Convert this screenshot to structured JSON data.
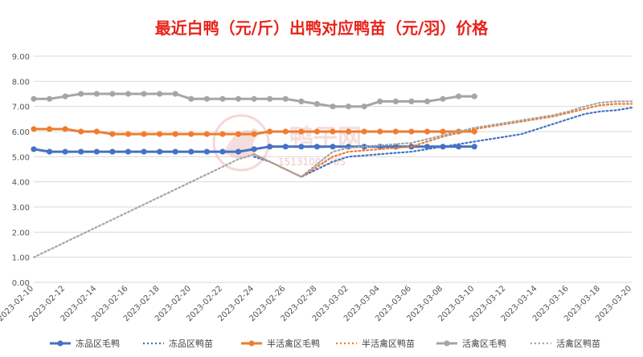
{
  "chart_data": {
    "type": "line",
    "title": "最近白鸭（元/斤）出鸭对应鸭苗（元/羽）价格",
    "xlabel": "",
    "ylabel": "",
    "ylim": [
      0,
      9
    ],
    "yticks": [
      "0.00",
      "1.00",
      "2.00",
      "3.00",
      "4.00",
      "5.00",
      "6.00",
      "7.00",
      "8.00",
      "9.00"
    ],
    "x": [
      "2023-02-10",
      "2023-02-11",
      "2023-02-12",
      "2023-02-13",
      "2023-02-14",
      "2023-02-15",
      "2023-02-16",
      "2023-02-17",
      "2023-02-18",
      "2023-02-19",
      "2023-02-20",
      "2023-02-21",
      "2023-02-22",
      "2023-02-23",
      "2023-02-24",
      "2023-02-25",
      "2023-02-26",
      "2023-02-27",
      "2023-02-28",
      "2023-03-01",
      "2023-03-02",
      "2023-03-03",
      "2023-03-04",
      "2023-03-05",
      "2023-03-06",
      "2023-03-07",
      "2023-03-08",
      "2023-03-09",
      "2023-03-10",
      "2023-03-11",
      "2023-03-12",
      "2023-03-13",
      "2023-03-14",
      "2023-03-15",
      "2023-03-16",
      "2023-03-17",
      "2023-03-18",
      "2023-03-19",
      "2023-03-20"
    ],
    "xticks": [
      "2023-02-10",
      "2023-02-12",
      "2023-02-14",
      "2023-02-16",
      "2023-02-18",
      "2023-02-20",
      "2023-02-22",
      "2023-02-24",
      "2023-02-26",
      "2023-02-28",
      "2023-03-02",
      "2023-03-04",
      "2023-03-06",
      "2023-03-08",
      "2023-03-10",
      "2023-03-12",
      "2023-03-14",
      "2023-03-16",
      "2023-03-18",
      "2023-03-20"
    ],
    "grid": true,
    "legend_position": "bottom",
    "series": [
      {
        "name": "冻品区毛鸭",
        "color": "#4472c4",
        "style": "solid-marker",
        "values": [
          5.3,
          5.2,
          5.2,
          5.2,
          5.2,
          5.2,
          5.2,
          5.2,
          5.2,
          5.2,
          5.2,
          5.2,
          5.2,
          5.2,
          5.3,
          5.4,
          5.4,
          5.4,
          5.4,
          5.4,
          5.4,
          5.4,
          5.4,
          5.4,
          5.4,
          5.4,
          5.4,
          5.4,
          5.4,
          null,
          null,
          null,
          null,
          null,
          null,
          null,
          null,
          null,
          null
        ]
      },
      {
        "name": "冻品区鸭苗",
        "color": "#4472c4",
        "style": "dotted",
        "values": [
          null,
          null,
          null,
          null,
          null,
          null,
          null,
          null,
          null,
          null,
          null,
          null,
          null,
          null,
          5.0,
          4.8,
          4.5,
          4.2,
          4.5,
          4.8,
          5.0,
          5.05,
          5.1,
          5.15,
          5.2,
          5.3,
          5.4,
          5.5,
          5.6,
          5.7,
          5.8,
          5.9,
          6.1,
          6.3,
          6.5,
          6.7,
          6.8,
          6.85,
          6.95
        ]
      },
      {
        "name": "半活禽区毛鸭",
        "color": "#ed7d31",
        "style": "solid-marker",
        "values": [
          6.1,
          6.1,
          6.1,
          6.0,
          6.0,
          5.9,
          5.9,
          5.9,
          5.9,
          5.9,
          5.9,
          5.9,
          5.9,
          5.9,
          5.9,
          6.0,
          6.0,
          6.0,
          6.0,
          6.0,
          6.0,
          6.0,
          6.0,
          6.0,
          6.0,
          6.0,
          6.0,
          6.0,
          6.0,
          null,
          null,
          null,
          null,
          null,
          null,
          null,
          null,
          null,
          null
        ]
      },
      {
        "name": "半活禽区鸭苗",
        "color": "#ed7d31",
        "style": "dotted",
        "values": [
          null,
          null,
          null,
          null,
          null,
          null,
          null,
          null,
          null,
          null,
          null,
          null,
          null,
          null,
          5.1,
          4.8,
          4.5,
          4.2,
          4.6,
          5.0,
          5.2,
          5.25,
          5.3,
          5.35,
          5.4,
          5.6,
          5.8,
          5.95,
          6.1,
          6.2,
          6.3,
          6.4,
          6.5,
          6.6,
          6.75,
          6.9,
          7.05,
          7.1,
          7.1
        ]
      },
      {
        "name": "活禽区毛鸭",
        "color": "#a5a5a5",
        "style": "solid-marker",
        "values": [
          7.3,
          7.3,
          7.4,
          7.5,
          7.5,
          7.5,
          7.5,
          7.5,
          7.5,
          7.5,
          7.3,
          7.3,
          7.3,
          7.3,
          7.3,
          7.3,
          7.3,
          7.2,
          7.1,
          7.0,
          7.0,
          7.0,
          7.2,
          7.2,
          7.2,
          7.2,
          7.3,
          7.4,
          7.4,
          null,
          null,
          null,
          null,
          null,
          null,
          null,
          null,
          null,
          null
        ]
      },
      {
        "name": "活禽区鸭苗",
        "color": "#a5a5a5",
        "style": "dotted",
        "values": [
          1.0,
          1.3,
          1.6,
          1.9,
          2.2,
          2.5,
          2.8,
          3.1,
          3.4,
          3.7,
          4.0,
          4.3,
          4.6,
          4.9,
          5.1,
          4.8,
          4.5,
          4.2,
          4.7,
          5.2,
          5.35,
          5.4,
          5.45,
          5.5,
          5.55,
          5.7,
          5.85,
          6.0,
          6.15,
          6.25,
          6.35,
          6.45,
          6.55,
          6.65,
          6.8,
          7.0,
          7.15,
          7.2,
          7.2
        ]
      }
    ]
  },
  "watermark": {
    "brand_text": "鸭子网",
    "phone_text": "15131009765"
  }
}
